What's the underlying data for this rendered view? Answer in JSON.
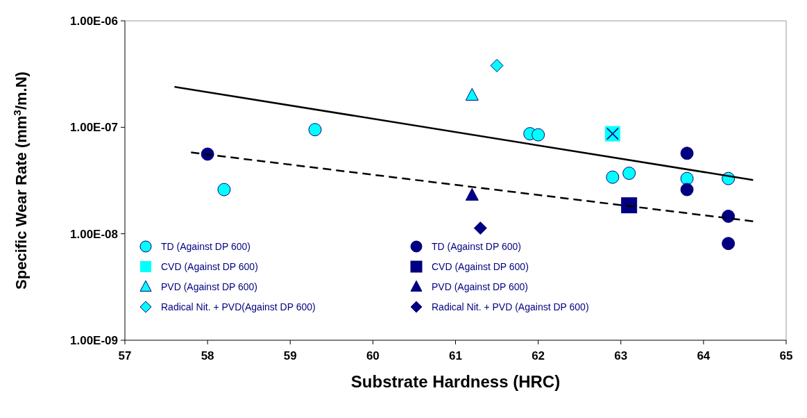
{
  "chart_data": {
    "type": "scatter",
    "xlabel": "Substrate Hardness (HRC)",
    "ylabel": "Specific Wear Rate (mm$^{3}$/m.N)",
    "xlim": [
      57,
      65
    ],
    "xticks": [
      57,
      58,
      59,
      60,
      61,
      62,
      63,
      64,
      65
    ],
    "ylim": [
      1e-09,
      1e-06
    ],
    "yticks": [
      {
        "value": 1e-09,
        "label": "1.00E-09"
      },
      {
        "value": 1e-08,
        "label": "1.00E-08"
      },
      {
        "value": 1e-07,
        "label": "1.00E-07"
      },
      {
        "value": 1e-06,
        "label": "1.00E-06"
      }
    ],
    "log": "y",
    "grid": false,
    "legend": "bottom left",
    "series": [
      {
        "name": "TD (Against DP 600)",
        "color": "#00ffff",
        "marker": "circle",
        "x": [
          58.2,
          59.3,
          61.9,
          62.0,
          62.9,
          63.1,
          63.8,
          64.3
        ],
        "values": [
          2.6e-08,
          9.5e-08,
          8.7e-08,
          8.5e-08,
          3.4e-08,
          3.7e-08,
          3.3e-08,
          3.3e-08
        ]
      },
      {
        "name": "CVD (Against DP 600)",
        "color": "#00ffff",
        "marker": "square",
        "x": [
          62.9
        ],
        "values": [
          8.7e-08
        ]
      },
      {
        "name": "PVD (Against DP 600)",
        "color": "#00ffff",
        "marker": "triangle",
        "x": [
          61.2
        ],
        "values": [
          2e-07
        ]
      },
      {
        "name": "Radical Nit. + PVD(Against DP 600)",
        "color": "#00ffff",
        "marker": "diamond",
        "x": [
          61.5
        ],
        "values": [
          3.8e-07
        ]
      },
      {
        "name": "TD (Against DP 600)",
        "color": "#000080",
        "marker": "circle",
        "x": [
          58.0,
          63.8,
          63.8,
          64.3,
          64.3
        ],
        "values": [
          5.6e-08,
          5.7e-08,
          2.6e-08,
          1.46e-08,
          8.1e-09
        ]
      },
      {
        "name": "CVD (Against DP 600)",
        "color": "#000080",
        "marker": "square",
        "x": [
          63.1
        ],
        "values": [
          1.85e-08
        ]
      },
      {
        "name": "PVD (Against DP 600)",
        "color": "#000080",
        "marker": "triangle",
        "x": [
          61.2
        ],
        "values": [
          2.3e-08
        ]
      },
      {
        "name": "Radical Nit. + PVD (Against DP 600)",
        "color": "#000080",
        "marker": "diamond",
        "x": [
          61.3
        ],
        "values": [
          1.13e-08
        ]
      },
      {
        "color": "#000080",
        "marker": "cross",
        "x": [
          62.9
        ],
        "values": [
          8.7e-08
        ]
      },
      {
        "type": "line",
        "color": "#000000",
        "line_style": "solid",
        "marker": "none",
        "x": [
          57.6,
          64.6
        ],
        "values": [
          2.4e-07,
          3.2e-08
        ]
      },
      {
        "type": "line",
        "color": "#000000",
        "line_style": "dashed",
        "marker": "none",
        "x": [
          57.8,
          64.6
        ],
        "values": [
          5.8e-08,
          1.31e-08
        ]
      }
    ]
  }
}
